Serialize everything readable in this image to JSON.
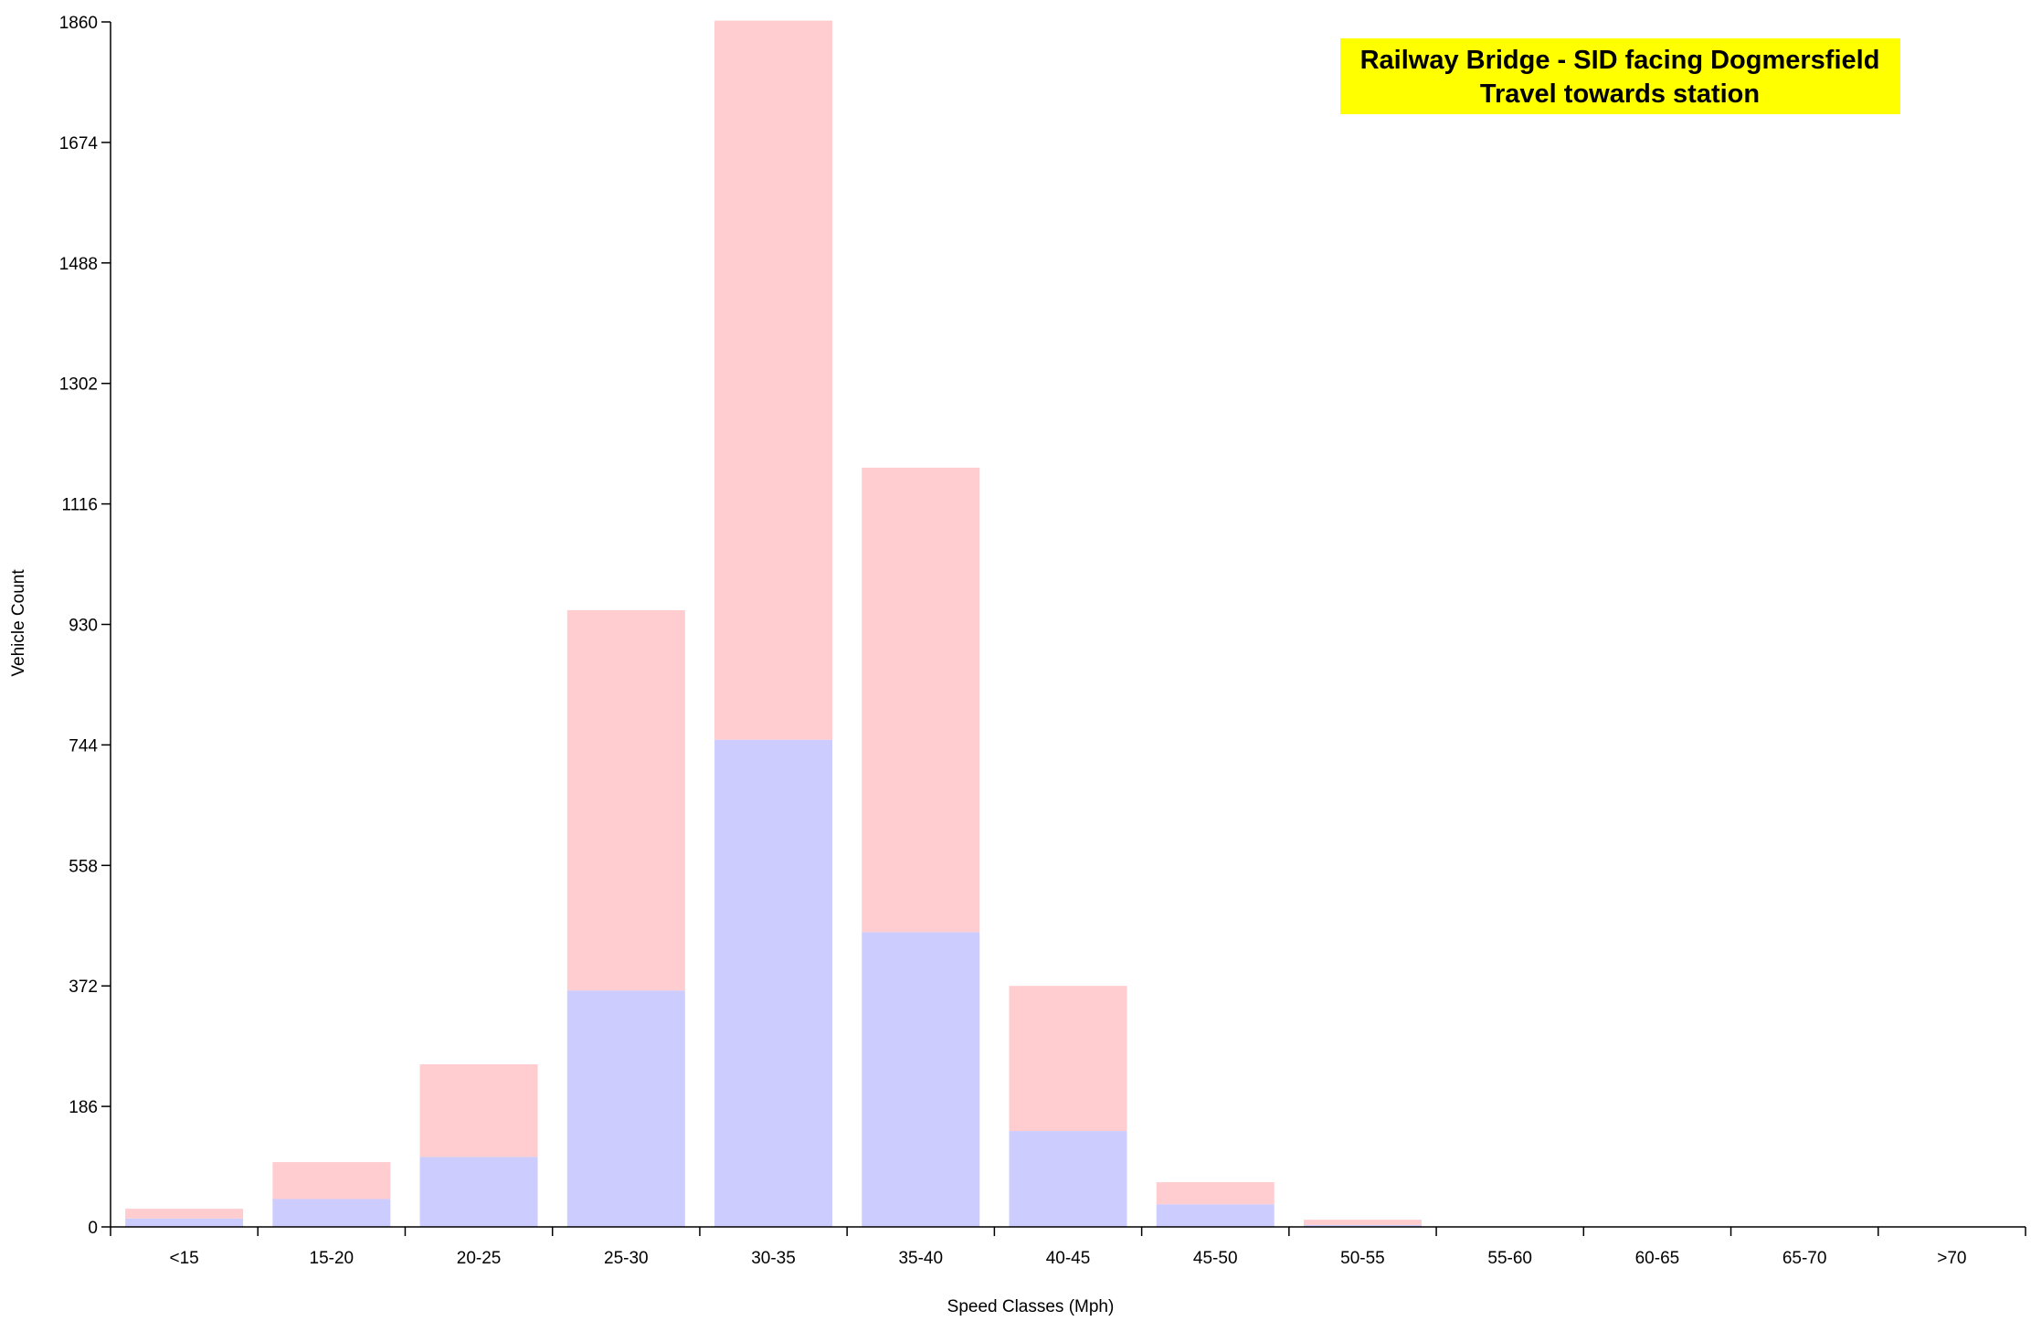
{
  "chart_data": {
    "type": "bar",
    "stacked": true,
    "title_lines": [
      "Railway Bridge - SID facing Dogmersfield",
      "Travel towards station"
    ],
    "title_background": "#ffff00",
    "xlabel": "Speed Classes (Mph)",
    "ylabel": "Vehicle Count",
    "ylim": [
      0,
      1860
    ],
    "yticks": [
      0,
      186,
      372,
      558,
      744,
      930,
      1116,
      1302,
      1488,
      1674,
      1860
    ],
    "categories": [
      "<15",
      "15-20",
      "20-25",
      "25-30",
      "30-35",
      "35-40",
      "40-45",
      "45-50",
      "50-55",
      "55-60",
      "60-65",
      "65-70",
      ">70"
    ],
    "series": [
      {
        "color": "#ccccff",
        "values": [
          13,
          43,
          108,
          365,
          752,
          455,
          148,
          35,
          3,
          0,
          0,
          0,
          0
        ]
      },
      {
        "color": "#ffcccf",
        "values": [
          15,
          57,
          143,
          587,
          1110,
          717,
          224,
          34,
          8,
          0,
          0,
          0,
          0
        ]
      }
    ],
    "grid": false,
    "legend": "none"
  }
}
